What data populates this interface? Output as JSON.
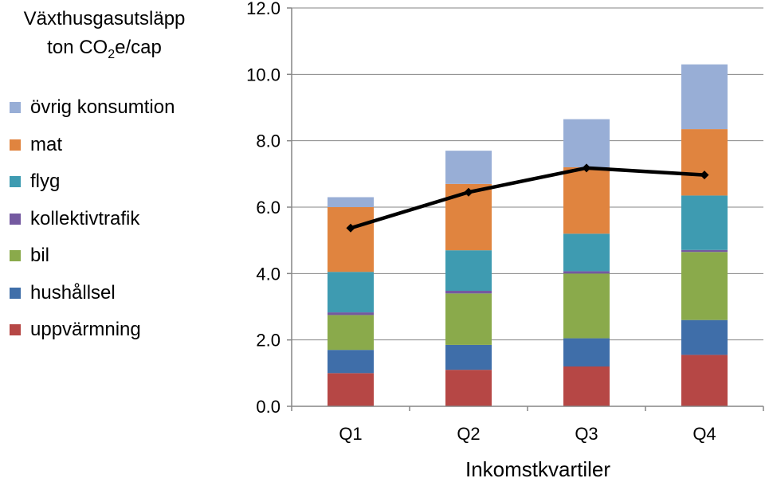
{
  "chart_data": {
    "type": "bar",
    "stacked": true,
    "title": "",
    "ylabel": {
      "line1": "Växthusgasutsläpp",
      "line2_prefix": "ton CO",
      "line2_sub": "2",
      "line2_suffix": "e/cap"
    },
    "xlabel": "Inkomstkvartiler",
    "categories": [
      "Q1",
      "Q2",
      "Q3",
      "Q4"
    ],
    "ylim": [
      0,
      12
    ],
    "yticks": [
      0,
      2,
      4,
      6,
      8,
      10,
      12
    ],
    "ytick_labels": [
      "0.0",
      "2.0",
      "4.0",
      "6.0",
      "8.0",
      "10.0",
      "12.0"
    ],
    "grid": true,
    "legend_position": "left",
    "series": [
      {
        "name": "uppvärmning",
        "color": "#b64745",
        "values": [
          1.0,
          1.1,
          1.2,
          1.55
        ]
      },
      {
        "name": "hushållsel",
        "color": "#3f6ea9",
        "values": [
          0.7,
          0.75,
          0.85,
          1.05
        ]
      },
      {
        "name": "bil",
        "color": "#8aaa4b",
        "values": [
          1.05,
          1.55,
          1.95,
          2.05
        ]
      },
      {
        "name": "kollektivtrafik",
        "color": "#7459a0",
        "values": [
          0.08,
          0.08,
          0.07,
          0.06
        ]
      },
      {
        "name": "flyg",
        "color": "#3e9bb1",
        "values": [
          1.22,
          1.22,
          1.13,
          1.64
        ]
      },
      {
        "name": "mat",
        "color": "#e0843f",
        "values": [
          1.95,
          2.0,
          2.0,
          2.0
        ]
      },
      {
        "name": "övrig konsumtion",
        "color": "#98aed6",
        "values": [
          0.3,
          1.0,
          1.45,
          1.95
        ]
      }
    ],
    "line": {
      "color": "#000000",
      "values": [
        5.37,
        6.45,
        7.18,
        6.97
      ]
    }
  }
}
